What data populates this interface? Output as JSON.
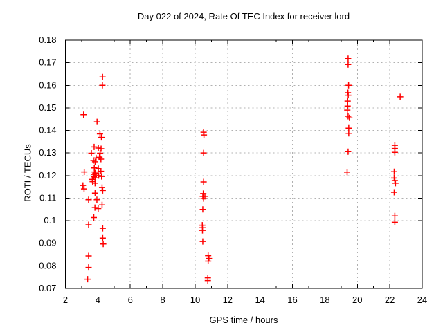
{
  "chart_data": {
    "type": "scatter",
    "title": "Day 022 of 2024, Rate Of TEC Index for receiver lord",
    "xlabel": "GPS time / hours",
    "ylabel": "ROTI / TECUs",
    "xlim": [
      2,
      24
    ],
    "ylim": [
      0.07,
      0.18
    ],
    "xticks": {
      "major": [
        2,
        4,
        6,
        8,
        10,
        12,
        14,
        16,
        18,
        20,
        22,
        24
      ],
      "labels": [
        "2",
        "4",
        "6",
        "8",
        "10",
        "12",
        "14",
        "16",
        "18",
        "20",
        "22",
        "24"
      ],
      "minor": [
        3,
        5,
        7,
        9,
        11,
        13,
        15,
        17,
        19,
        21,
        23
      ]
    },
    "yticks": {
      "values": [
        0.07,
        0.08,
        0.09,
        0.1,
        0.11,
        0.12,
        0.13,
        0.14,
        0.15,
        0.16,
        0.17,
        0.18
      ],
      "labels": [
        "0.07",
        "0.08",
        "0.09",
        "0.1",
        "0.11",
        "0.12",
        "0.13",
        "0.14",
        "0.15",
        "0.16",
        "0.17",
        "0.18"
      ]
    },
    "grid": {
      "style": "dashed",
      "color": "#b0b0b0",
      "on_major_only": true
    },
    "legend": "none",
    "marker": {
      "shape": "plus",
      "color": "#ff0000",
      "size": 9
    },
    "series": [
      {
        "name": "ROTI",
        "points": [
          [
            4.29,
            0.1637
          ],
          [
            4.28,
            0.16
          ],
          [
            3.12,
            0.147
          ],
          [
            3.95,
            0.1438
          ],
          [
            4.13,
            0.1385
          ],
          [
            4.22,
            0.1369
          ],
          [
            3.77,
            0.1327
          ],
          [
            4.03,
            0.1322
          ],
          [
            4.2,
            0.1319
          ],
          [
            3.6,
            0.1299
          ],
          [
            4.14,
            0.1299
          ],
          [
            4.1,
            0.1281
          ],
          [
            3.89,
            0.1278
          ],
          [
            4.19,
            0.1273
          ],
          [
            3.73,
            0.1267
          ],
          [
            3.83,
            0.1261
          ],
          [
            3.78,
            0.1234
          ],
          [
            4.03,
            0.1231
          ],
          [
            4.19,
            0.1219
          ],
          [
            3.16,
            0.1216
          ],
          [
            3.8,
            0.1216
          ],
          [
            3.85,
            0.121
          ],
          [
            3.77,
            0.1205
          ],
          [
            3.86,
            0.1199
          ],
          [
            3.75,
            0.1195
          ],
          [
            3.83,
            0.119
          ],
          [
            4.05,
            0.12
          ],
          [
            4.23,
            0.1196
          ],
          [
            3.66,
            0.1183
          ],
          [
            3.68,
            0.1173
          ],
          [
            3.83,
            0.1166
          ],
          [
            3.08,
            0.1156
          ],
          [
            3.15,
            0.1141
          ],
          [
            4.26,
            0.1147
          ],
          [
            4.3,
            0.1134
          ],
          [
            3.83,
            0.1122
          ],
          [
            3.43,
            0.1093
          ],
          [
            3.94,
            0.1093
          ],
          [
            4.26,
            0.107
          ],
          [
            3.82,
            0.1058
          ],
          [
            4.02,
            0.1054
          ],
          [
            3.75,
            0.1014
          ],
          [
            3.43,
            0.0982
          ],
          [
            4.3,
            0.0966
          ],
          [
            4.3,
            0.0923
          ],
          [
            4.33,
            0.0897
          ],
          [
            3.43,
            0.0844
          ],
          [
            3.43,
            0.0793
          ],
          [
            3.37,
            0.0741
          ],
          [
            10.52,
            0.1392
          ],
          [
            10.54,
            0.138
          ],
          [
            10.52,
            0.13
          ],
          [
            10.52,
            0.1172
          ],
          [
            10.5,
            0.112
          ],
          [
            10.47,
            0.1108
          ],
          [
            10.6,
            0.1108
          ],
          [
            10.52,
            0.1098
          ],
          [
            10.47,
            0.105
          ],
          [
            10.44,
            0.098
          ],
          [
            10.45,
            0.0969
          ],
          [
            10.45,
            0.0957
          ],
          [
            10.47,
            0.0908
          ],
          [
            10.8,
            0.0845
          ],
          [
            10.85,
            0.0833
          ],
          [
            10.8,
            0.0821
          ],
          [
            10.78,
            0.0747
          ],
          [
            10.78,
            0.0735
          ],
          [
            19.43,
            0.1718
          ],
          [
            19.43,
            0.1692
          ],
          [
            19.46,
            0.16
          ],
          [
            19.42,
            0.1567
          ],
          [
            19.44,
            0.1556
          ],
          [
            19.4,
            0.153
          ],
          [
            19.4,
            0.1508
          ],
          [
            19.38,
            0.149
          ],
          [
            19.43,
            0.1463
          ],
          [
            19.51,
            0.1456
          ],
          [
            19.47,
            0.141
          ],
          [
            19.47,
            0.1387
          ],
          [
            19.43,
            0.1306
          ],
          [
            19.37,
            0.1215
          ],
          [
            22.64,
            0.1549
          ],
          [
            22.31,
            0.1334
          ],
          [
            22.31,
            0.132
          ],
          [
            22.31,
            0.1303
          ],
          [
            22.27,
            0.1217
          ],
          [
            22.27,
            0.1189
          ],
          [
            22.31,
            0.1178
          ],
          [
            22.35,
            0.1166
          ],
          [
            22.27,
            0.1126
          ],
          [
            22.31,
            0.1021
          ],
          [
            22.31,
            0.0993
          ]
        ]
      }
    ]
  },
  "colors": {
    "background": "#ffffff",
    "border": "#000000",
    "grid": "#b0b0b0",
    "marker": "#ff0000",
    "text": "#000000"
  }
}
